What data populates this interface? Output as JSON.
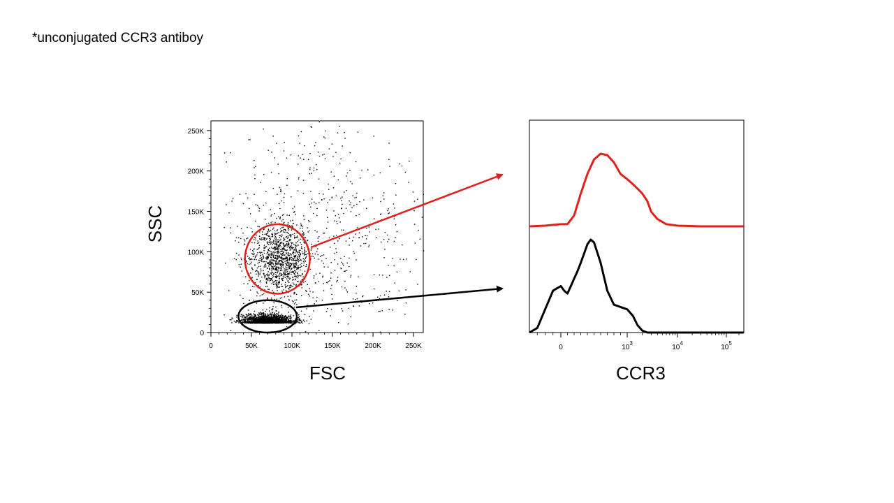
{
  "note": "*unconjugated CCR3 antiboy",
  "chart_data": [
    {
      "type": "scatter",
      "xlabel": "FSC",
      "ylabel": "SSC",
      "xlim": [
        0,
        262000
      ],
      "ylim": [
        0,
        262000
      ],
      "x_ticks": [
        "0",
        "50K",
        "100K",
        "150K",
        "200K",
        "250K"
      ],
      "y_ticks": [
        "0",
        "50K",
        "100K",
        "150K",
        "200K",
        "250K"
      ],
      "populations": [
        {
          "name": "",
          "center": [
            85000,
            90000
          ],
          "spread": [
            18000,
            22000
          ],
          "count": 1100,
          "color": "#000000"
        },
        {
          "name": "",
          "center": [
            70000,
            12000
          ],
          "spread": [
            16000,
            5000
          ],
          "count": 1600,
          "color": "#000000"
        },
        {
          "name": "",
          "center": [
            130000,
            120000
          ],
          "spread": [
            70000,
            70000
          ],
          "count": 700,
          "color": "#000000"
        }
      ],
      "gates": [
        {
          "shape": "ellipse",
          "center": [
            82000,
            91000
          ],
          "radii": [
            40000,
            43000
          ],
          "color": "#e0201b"
        },
        {
          "shape": "ellipse",
          "center": [
            70000,
            20000
          ],
          "radii": [
            36000,
            20000
          ],
          "color": "#000000"
        }
      ]
    },
    {
      "type": "line",
      "xlabel": "CCR3",
      "ylabel": "",
      "xscale": "biexponential",
      "x_ticks": [
        "0",
        "10^3",
        "10^4",
        "10^5"
      ],
      "series": [
        {
          "color": "#e0201b",
          "x": [
            -400,
            -200,
            0,
            100,
            200,
            300,
            400,
            500,
            600,
            700,
            800,
            900,
            1000,
            1300,
            1600,
            2000,
            2500,
            3000,
            4000,
            6000,
            10000,
            30000,
            100000,
            260000
          ],
          "y": [
            0.0,
            0.01,
            0.03,
            0.03,
            0.15,
            0.45,
            0.72,
            0.92,
            1.0,
            0.98,
            0.88,
            0.72,
            0.65,
            0.58,
            0.52,
            0.45,
            0.35,
            0.2,
            0.1,
            0.03,
            0.01,
            0.0,
            0.0,
            0.0
          ]
        },
        {
          "color": "#000000",
          "x": [
            -400,
            -300,
            -200,
            -100,
            0,
            50,
            100,
            150,
            200,
            250,
            300,
            350,
            400,
            450,
            500,
            600,
            700,
            800,
            1000,
            1300,
            1600,
            2000,
            2500,
            3000,
            4000,
            6000,
            10000,
            30000,
            100000,
            260000
          ],
          "y": [
            0.0,
            0.05,
            0.25,
            0.45,
            0.5,
            0.45,
            0.42,
            0.5,
            0.58,
            0.66,
            0.75,
            0.85,
            0.95,
            1.0,
            0.97,
            0.75,
            0.45,
            0.3,
            0.25,
            0.18,
            0.08,
            0.02,
            0.0,
            0.0,
            0.0,
            0.0,
            0.0,
            0.0,
            0.0,
            0.0
          ]
        }
      ]
    }
  ]
}
